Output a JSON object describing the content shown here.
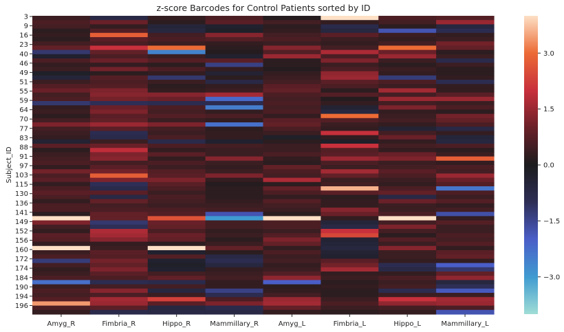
{
  "chart_data": {
    "type": "heatmap",
    "title": "z-score Barcodes for Control Patients sorted by ID",
    "ylabel": "Subject_ID",
    "xlabel": "",
    "columns": [
      "Amyg_R",
      "Fimbria_R",
      "Hippo_R",
      "Mammillary_R",
      "Amyg_L",
      "Fimbria_L",
      "Hippo_L",
      "Mammillary_L"
    ],
    "y_tick_labels": [
      "3",
      "9",
      "16",
      "23",
      "40",
      "46",
      "49",
      "51",
      "55",
      "59",
      "64",
      "70",
      "77",
      "83",
      "88",
      "91",
      "97",
      "103",
      "115",
      "130",
      "136",
      "141",
      "149",
      "152",
      "156",
      "160",
      "172",
      "174",
      "184",
      "190",
      "194",
      "196"
    ],
    "colorbar": {
      "vmin": -4.0,
      "vmax": 4.0,
      "ticks": [
        3.0,
        1.5,
        0.0,
        -1.5,
        -3.0
      ],
      "tick_labels": [
        "3.0",
        "1.5",
        "0.0",
        "−1.5",
        "−3.0"
      ]
    },
    "colormap_stops": [
      {
        "v": -4.0,
        "color": "#a0ddd6"
      },
      {
        "v": -3.0,
        "color": "#3f9bd0"
      },
      {
        "v": -2.0,
        "color": "#4a5ec8"
      },
      {
        "v": -1.0,
        "color": "#2e2e56"
      },
      {
        "v": 0.0,
        "color": "#1c1c1e"
      },
      {
        "v": 1.0,
        "color": "#6a2028"
      },
      {
        "v": 2.0,
        "color": "#c8303c"
      },
      {
        "v": 3.0,
        "color": "#ec6a35"
      },
      {
        "v": 4.0,
        "color": "#fde0c6"
      }
    ],
    "values": [
      [
        0.4,
        -0.7,
        0.3,
        0.6,
        0.1,
        4.0,
        0.6,
        0.7
      ],
      [
        0.6,
        1.0,
        0.2,
        0.8,
        0.5,
        0.3,
        0.5,
        1.5
      ],
      [
        0.5,
        0.3,
        -0.5,
        -0.3,
        0.2,
        -0.8,
        0.2,
        -0.6
      ],
      [
        0.2,
        0.7,
        -0.6,
        -0.2,
        0.3,
        -0.6,
        -1.8,
        -0.9
      ],
      [
        0.3,
        2.8,
        0.5,
        1.3,
        0.5,
        0.8,
        0.4,
        0.3
      ],
      [
        0.2,
        0.8,
        0.6,
        0.7,
        0.6,
        0.4,
        0.3,
        0.4
      ],
      [
        0.5,
        0.6,
        0.4,
        0.3,
        0.4,
        0.3,
        0.5,
        1.1
      ],
      [
        0.9,
        2.0,
        3.0,
        0.2,
        1.3,
        0.5,
        3.0,
        0.9
      ],
      [
        -1.2,
        0.9,
        -2.6,
        0.1,
        0.7,
        1.7,
        1.0,
        0.2
      ],
      [
        -0.3,
        0.6,
        0.4,
        -0.3,
        1.5,
        0.6,
        1.5,
        0.4
      ],
      [
        0.6,
        1.0,
        0.7,
        0.8,
        0.2,
        1.2,
        0.4,
        -0.8
      ],
      [
        0.3,
        0.3,
        0.2,
        -1.4,
        0.2,
        0.4,
        0.2,
        0.4
      ],
      [
        0.4,
        1.1,
        0.6,
        0.3,
        0.1,
        0.6,
        0.4,
        0.2
      ],
      [
        -0.2,
        0.2,
        0.3,
        -0.4,
        0.3,
        1.4,
        0.3,
        0.2
      ],
      [
        -0.5,
        0.7,
        -1.2,
        0.2,
        0.4,
        1.5,
        -1.3,
        0.3
      ],
      [
        0.4,
        0.6,
        0.4,
        -0.7,
        0.5,
        0.8,
        0.6,
        -0.9
      ],
      [
        0.7,
        0.7,
        0.2,
        0.3,
        0.8,
        0.6,
        0.4,
        0.3
      ],
      [
        1.0,
        1.2,
        0.3,
        0.4,
        0.9,
        0.2,
        1.6,
        0.3
      ],
      [
        0.5,
        1.3,
        1.3,
        1.6,
        0.6,
        0.7,
        0.5,
        0.8
      ],
      [
        0.6,
        1.1,
        1.0,
        -2.2,
        0.5,
        0.1,
        1.5,
        1.5
      ],
      [
        -1.2,
        -1.0,
        -0.9,
        -0.9,
        0.6,
        0.3,
        0.5,
        0.4
      ],
      [
        0.3,
        1.0,
        0.6,
        -2.5,
        0.5,
        -0.4,
        1.2,
        0.6
      ],
      [
        0.4,
        1.2,
        0.5,
        0.3,
        0.6,
        -0.6,
        0.3,
        0.2
      ],
      [
        0.2,
        0.8,
        0.7,
        0.6,
        0.3,
        3.0,
        0.4,
        1.1
      ],
      [
        0.5,
        0.9,
        0.4,
        0.3,
        0.8,
        0.7,
        0.5,
        0.9
      ],
      [
        1.2,
        1.5,
        1.2,
        -2.3,
        0.9,
        0.4,
        0.3,
        0.6
      ],
      [
        0.5,
        0.8,
        0.5,
        0.2,
        0.6,
        0.3,
        -0.4,
        -0.7
      ],
      [
        0.4,
        -0.9,
        0.4,
        0.3,
        0.4,
        2.0,
        0.5,
        0.3
      ],
      [
        0.3,
        -0.8,
        0.6,
        0.3,
        -0.2,
        0.3,
        1.0,
        -0.5
      ],
      [
        -0.4,
        0.4,
        -0.8,
        -0.3,
        0.2,
        -0.2,
        0.3,
        -0.6
      ],
      [
        0.8,
        1.0,
        0.6,
        0.5,
        0.4,
        2.0,
        0.5,
        0.6
      ],
      [
        0.2,
        1.9,
        0.3,
        0.4,
        0.4,
        0.7,
        0.3,
        0.2
      ],
      [
        0.4,
        1.2,
        0.8,
        0.4,
        0.6,
        0.8,
        1.0,
        0.4
      ],
      [
        0.5,
        1.3,
        0.3,
        1.3,
        0.3,
        1.5,
        1.2,
        2.8
      ],
      [
        0.6,
        0.5,
        0.6,
        0.4,
        0.2,
        0.6,
        0.4,
        0.3
      ],
      [
        0.3,
        0.8,
        0.4,
        0.3,
        0.9,
        0.4,
        0.5,
        0.6
      ],
      [
        1.1,
        1.1,
        0.7,
        0.4,
        0.6,
        1.6,
        0.8,
        0.5
      ],
      [
        0.6,
        2.8,
        0.8,
        1.2,
        0.5,
        0.9,
        0.6,
        1.5
      ],
      [
        0.8,
        1.2,
        1.2,
        0.3,
        1.7,
        0.4,
        0.4,
        1.0
      ],
      [
        0.3,
        -1.0,
        0.8,
        0.1,
        0.2,
        0.5,
        0.3,
        0.7
      ],
      [
        0.6,
        -0.8,
        0.6,
        0.2,
        0.9,
        3.6,
        0.6,
        -2.4
      ],
      [
        0.8,
        0.8,
        0.4,
        0.2,
        0.6,
        0.8,
        0.9,
        0.6
      ],
      [
        0.6,
        -0.7,
        0.6,
        0.2,
        0.3,
        0.2,
        -0.7,
        0.4
      ],
      [
        0.3,
        0.9,
        0.5,
        0.3,
        0.7,
        0.3,
        1.0,
        0.7
      ],
      [
        0.6,
        0.5,
        0.4,
        0.4,
        0.5,
        0.3,
        0.4,
        0.3
      ],
      [
        0.6,
        0.6,
        0.6,
        0.5,
        0.4,
        1.3,
        0.4,
        0.5
      ],
      [
        0.2,
        0.9,
        0.7,
        -1.8,
        0.2,
        1.0,
        0.6,
        -1.7
      ],
      [
        4.0,
        0.9,
        2.6,
        -3.0,
        4.0,
        0.3,
        4.0,
        0.3
      ],
      [
        1.2,
        -1.2,
        1.0,
        0.5,
        0.6,
        -0.5,
        0.5,
        0.7
      ],
      [
        0.5,
        -1.0,
        0.9,
        0.5,
        0.6,
        -0.7,
        1.2,
        0.4
      ],
      [
        0.3,
        1.7,
        0.6,
        0.3,
        0.4,
        2.0,
        0.5,
        0.4
      ],
      [
        0.8,
        1.6,
        1.0,
        0.4,
        0.7,
        2.4,
        0.2,
        0.6
      ],
      [
        0.7,
        1.3,
        0.9,
        0.2,
        1.2,
        -0.4,
        0.7,
        0.5
      ],
      [
        0.3,
        0.3,
        0.2,
        0.4,
        0.9,
        -0.5,
        0.4,
        0.7
      ],
      [
        4.0,
        0.4,
        4.0,
        0.9,
        0.3,
        -0.6,
        1.3,
        0.3
      ],
      [
        0.4,
        0.8,
        -0.3,
        0.2,
        0.6,
        -0.4,
        0.4,
        0.8
      ],
      [
        0.6,
        0.7,
        0.7,
        -0.7,
        0.4,
        -0.3,
        0.4,
        0.9
      ],
      [
        -1.3,
        1.1,
        -0.3,
        -0.9,
        0.5,
        0.8,
        0.3,
        0.3
      ],
      [
        0.5,
        0.9,
        -0.2,
        -0.6,
        0.3,
        1.1,
        -0.9,
        -2.0
      ],
      [
        0.3,
        1.2,
        -0.3,
        0.3,
        0.4,
        1.6,
        -0.7,
        -1.2
      ],
      [
        0.4,
        0.8,
        0.5,
        0.4,
        0.7,
        0.3,
        0.3,
        0.9
      ],
      [
        0.6,
        0.6,
        0.9,
        0.5,
        1.4,
        0.4,
        0.6,
        1.4
      ],
      [
        -2.3,
        -0.9,
        -0.8,
        0.3,
        -2.0,
        0.2,
        0.4,
        -0.6
      ],
      [
        0.4,
        0.5,
        0.5,
        0.3,
        0.2,
        0.3,
        0.5,
        -1.0
      ],
      [
        0.6,
        1.3,
        -0.6,
        -1.4,
        0.3,
        0.2,
        -0.9,
        -1.9
      ],
      [
        0.5,
        0.6,
        0.4,
        -0.9,
        0.5,
        0.2,
        0.4,
        0.4
      ],
      [
        0.7,
        1.6,
        2.3,
        0.6,
        1.5,
        0.4,
        2.0,
        1.6
      ],
      [
        3.4,
        1.5,
        0.8,
        1.2,
        1.6,
        0.6,
        1.4,
        1.5
      ],
      [
        0.6,
        0.8,
        -0.6,
        -0.8,
        0.9,
        0.4,
        0.5,
        0.6
      ],
      [
        0.3,
        -0.8,
        -0.7,
        -0.7,
        0.3,
        0.2,
        0.3,
        -1.8
      ]
    ]
  }
}
